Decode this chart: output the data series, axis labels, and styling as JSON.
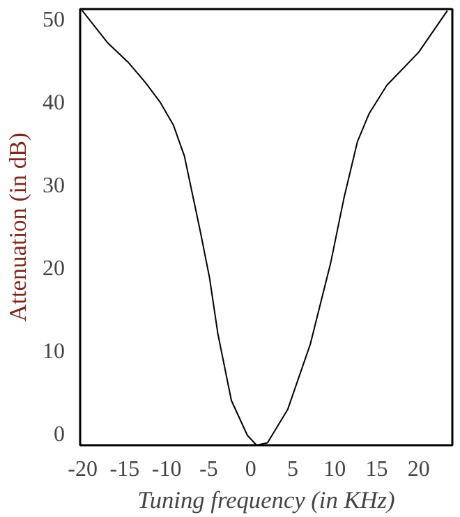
{
  "chart_data": {
    "type": "line",
    "xlabel": "Tuning frequency (in KHz)",
    "ylabel": "Attenuation (in dB)",
    "x": [
      -20.2,
      -17.0,
      -14.6,
      -12.5,
      -10.8,
      -9.2,
      -7.9,
      -6.0,
      -4.9,
      -3.9,
      -2.3,
      -0.4,
      0.7,
      2.0,
      4.4,
      7.1,
      9.5,
      11.1,
      12.7,
      14.1,
      16.2,
      20.0,
      23.4
    ],
    "series": [
      {
        "color": "#000000",
        "values": [
          51.2,
          47.1,
          44.8,
          42.3,
          40.0,
          37.2,
          33.5,
          24.4,
          18.8,
          12.0,
          4.0,
          -0.2,
          -1.4,
          -1.1,
          2.9,
          10.8,
          20.5,
          28.4,
          35.2,
          38.6,
          42.0,
          46.0,
          51.0
        ]
      }
    ],
    "xlim": [
      -20.3,
      24
    ],
    "ylim": [
      -1.4,
      51.2
    ],
    "xticks": [
      -20,
      -15,
      -10,
      -5,
      0,
      5,
      10,
      15,
      20
    ],
    "yticks": [
      0,
      10,
      20,
      30,
      40,
      50
    ],
    "grid": false,
    "marker": "none",
    "line_style": "solid"
  }
}
